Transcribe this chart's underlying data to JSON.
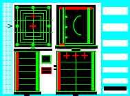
{
  "bg_color": "#00ffff",
  "black": "#000000",
  "white": "#ffffff",
  "cyan": "#00ffff",
  "green": "#00ff00",
  "red": "#ff0000",
  "yellow": "#ffff00",
  "figw": 1.89,
  "figh": 1.4,
  "dpi": 100
}
